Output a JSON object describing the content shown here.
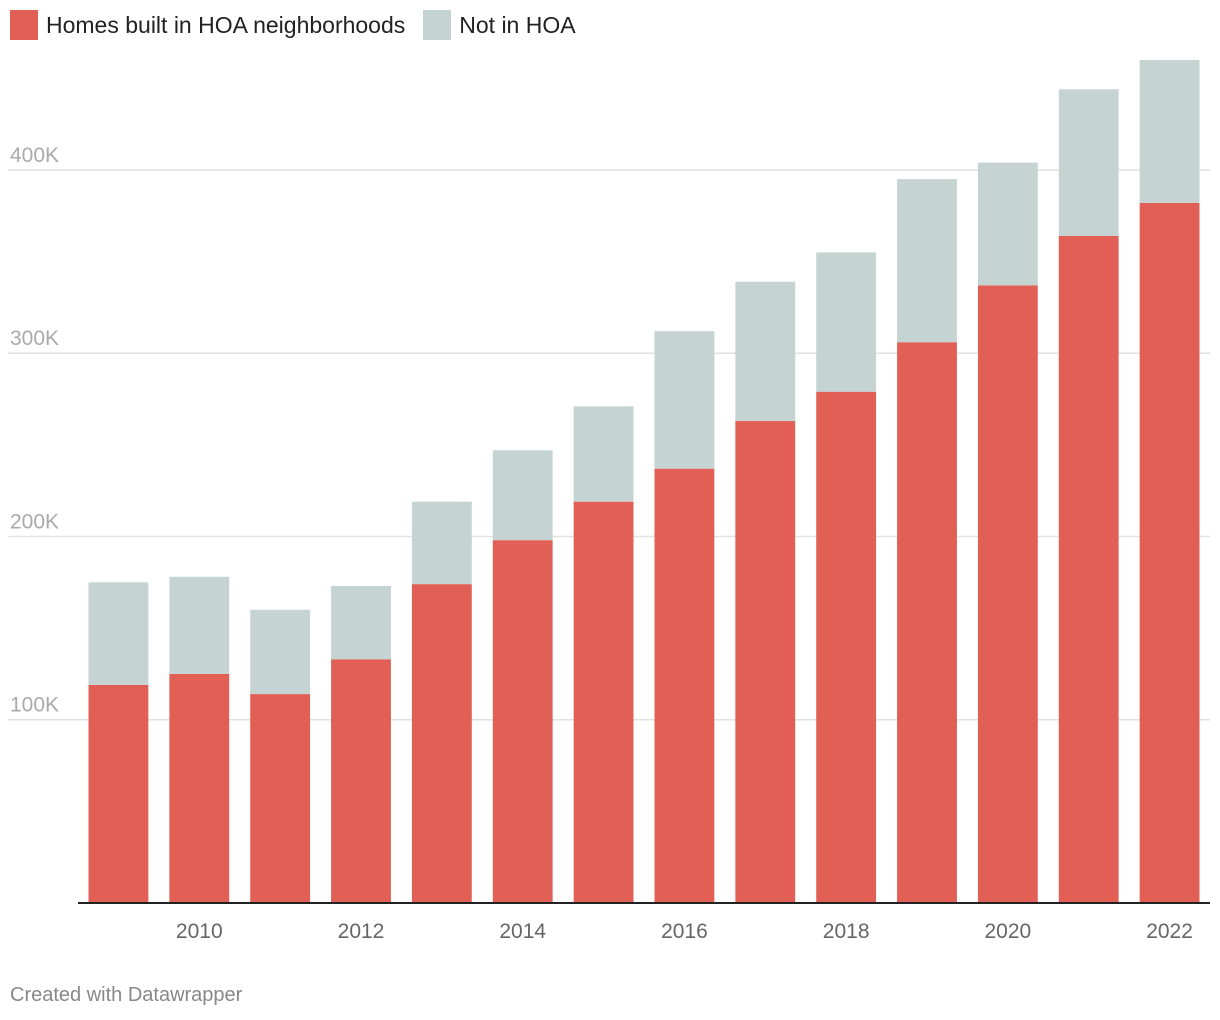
{
  "chart_data": {
    "type": "bar",
    "stacked": true,
    "title": "",
    "xlabel": "",
    "ylabel": "",
    "categories": [
      "2009",
      "2010",
      "2011",
      "2012",
      "2013",
      "2014",
      "2015",
      "2016",
      "2017",
      "2018",
      "2019",
      "2020",
      "2021",
      "2022"
    ],
    "x_tick_labels": [
      "2010",
      "2012",
      "2014",
      "2016",
      "2018",
      "2020",
      "2022"
    ],
    "series": [
      {
        "name": "Homes built in HOA neighborhoods",
        "color": "#e15f55",
        "values": [
          119000,
          125000,
          114000,
          133000,
          174000,
          198000,
          219000,
          237000,
          263000,
          279000,
          306000,
          337000,
          364000,
          382000
        ]
      },
      {
        "name": "Not in HOA",
        "color": "#c5d3d2",
        "values": [
          56000,
          53000,
          46000,
          40000,
          45000,
          49000,
          52000,
          75000,
          76000,
          76000,
          89000,
          67000,
          80000,
          78000
        ]
      }
    ],
    "ylim": [
      0,
      460000
    ],
    "y_ticks": [
      100000,
      200000,
      300000,
      400000
    ],
    "y_tick_labels": [
      "100K",
      "200K",
      "300K",
      "400K"
    ],
    "grid": true,
    "legend_position": "top-left"
  },
  "footer": {
    "credit": "Created with Datawrapper"
  }
}
